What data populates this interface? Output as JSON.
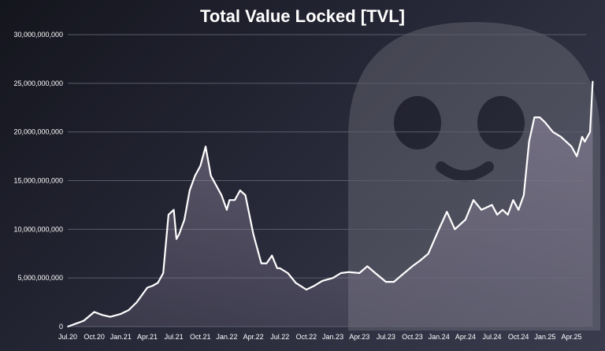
{
  "chart_data": {
    "type": "area",
    "title": "Total Value Locked [TVL]",
    "xlabel": "",
    "ylabel": "",
    "ylim": [
      0,
      30000000000
    ],
    "y_ticks": [
      {
        "value": 0,
        "label": "0"
      },
      {
        "value": 5000000000,
        "label": "5,000,000,000"
      },
      {
        "value": 10000000000,
        "label": "10,000,000,000"
      },
      {
        "value": 15000000000,
        "label": "15,000,000,000"
      },
      {
        "value": 20000000000,
        "label": "20,000,000,000"
      },
      {
        "value": 25000000000,
        "label": "25,000,000,000"
      },
      {
        "value": 30000000000,
        "label": "30,000,000,000"
      }
    ],
    "x_ticks": [
      "Jul.20",
      "Oct.20",
      "Jan.21",
      "Apr.21",
      "Jul.21",
      "Oct.21",
      "Jan.22",
      "Apr.22",
      "Jul.22",
      "Oct.22",
      "Jan.23",
      "Apr.23",
      "Jul.23",
      "Oct.23",
      "Jan.24",
      "Apr.24",
      "Jul.24",
      "Oct.24",
      "Jan.25",
      "Apr.25"
    ],
    "grid": true,
    "legend": "none",
    "colors": {
      "line": "#ffffff",
      "area": "#9a8fa8",
      "grid": "#5a5c6c",
      "text": "#ffffff"
    },
    "series": [
      {
        "x": [
          0,
          0.3,
          0.6,
          1.0,
          1.3,
          1.6,
          2.0,
          2.3,
          2.6,
          3.0,
          3.2,
          3.4,
          3.6,
          3.8,
          4.0,
          4.1,
          4.2,
          4.4,
          4.6,
          4.8,
          5.0,
          5.2,
          5.4,
          5.6,
          5.8,
          6.0,
          6.1,
          6.3,
          6.5,
          6.7,
          7.0,
          7.3,
          7.5,
          7.7,
          7.9,
          8.0,
          8.3,
          8.6,
          9.0,
          9.3,
          9.6,
          10.0,
          10.3,
          10.6,
          11.0,
          11.3,
          11.6,
          12.0,
          12.3,
          12.6,
          13.0,
          13.3,
          13.6,
          14.0,
          14.3,
          14.6,
          15.0,
          15.3,
          15.6,
          16.0,
          16.2,
          16.4,
          16.6,
          16.8,
          17.0,
          17.2,
          17.4,
          17.6,
          17.8,
          18.0,
          18.3,
          18.6,
          19.0,
          19.2,
          19.4,
          19.5,
          19.7,
          19.8
        ],
        "values": [
          0,
          0.3,
          0.6,
          1.5,
          1.2,
          1.0,
          1.3,
          1.7,
          2.5,
          4.0,
          4.2,
          4.5,
          5.5,
          11.5,
          12.0,
          9.0,
          9.5,
          11.0,
          14.0,
          15.5,
          16.5,
          18.5,
          15.5,
          14.5,
          13.5,
          12.0,
          13.0,
          13.0,
          14.0,
          13.5,
          9.5,
          6.5,
          6.5,
          7.3,
          6.0,
          6.0,
          5.5,
          4.5,
          3.8,
          4.2,
          4.7,
          5.0,
          5.5,
          5.6,
          5.5,
          6.2,
          5.5,
          4.6,
          4.6,
          5.3,
          6.2,
          6.8,
          7.5,
          10.0,
          11.8,
          10.0,
          11.0,
          13.0,
          12.0,
          12.5,
          11.5,
          12.0,
          11.5,
          13.0,
          12.0,
          13.5,
          19.0,
          21.5,
          21.5,
          21.0,
          20.0,
          19.5,
          18.5,
          17.5,
          19.5,
          19.0,
          20.0,
          25.2
        ],
        "values_unit": "billions"
      }
    ]
  }
}
